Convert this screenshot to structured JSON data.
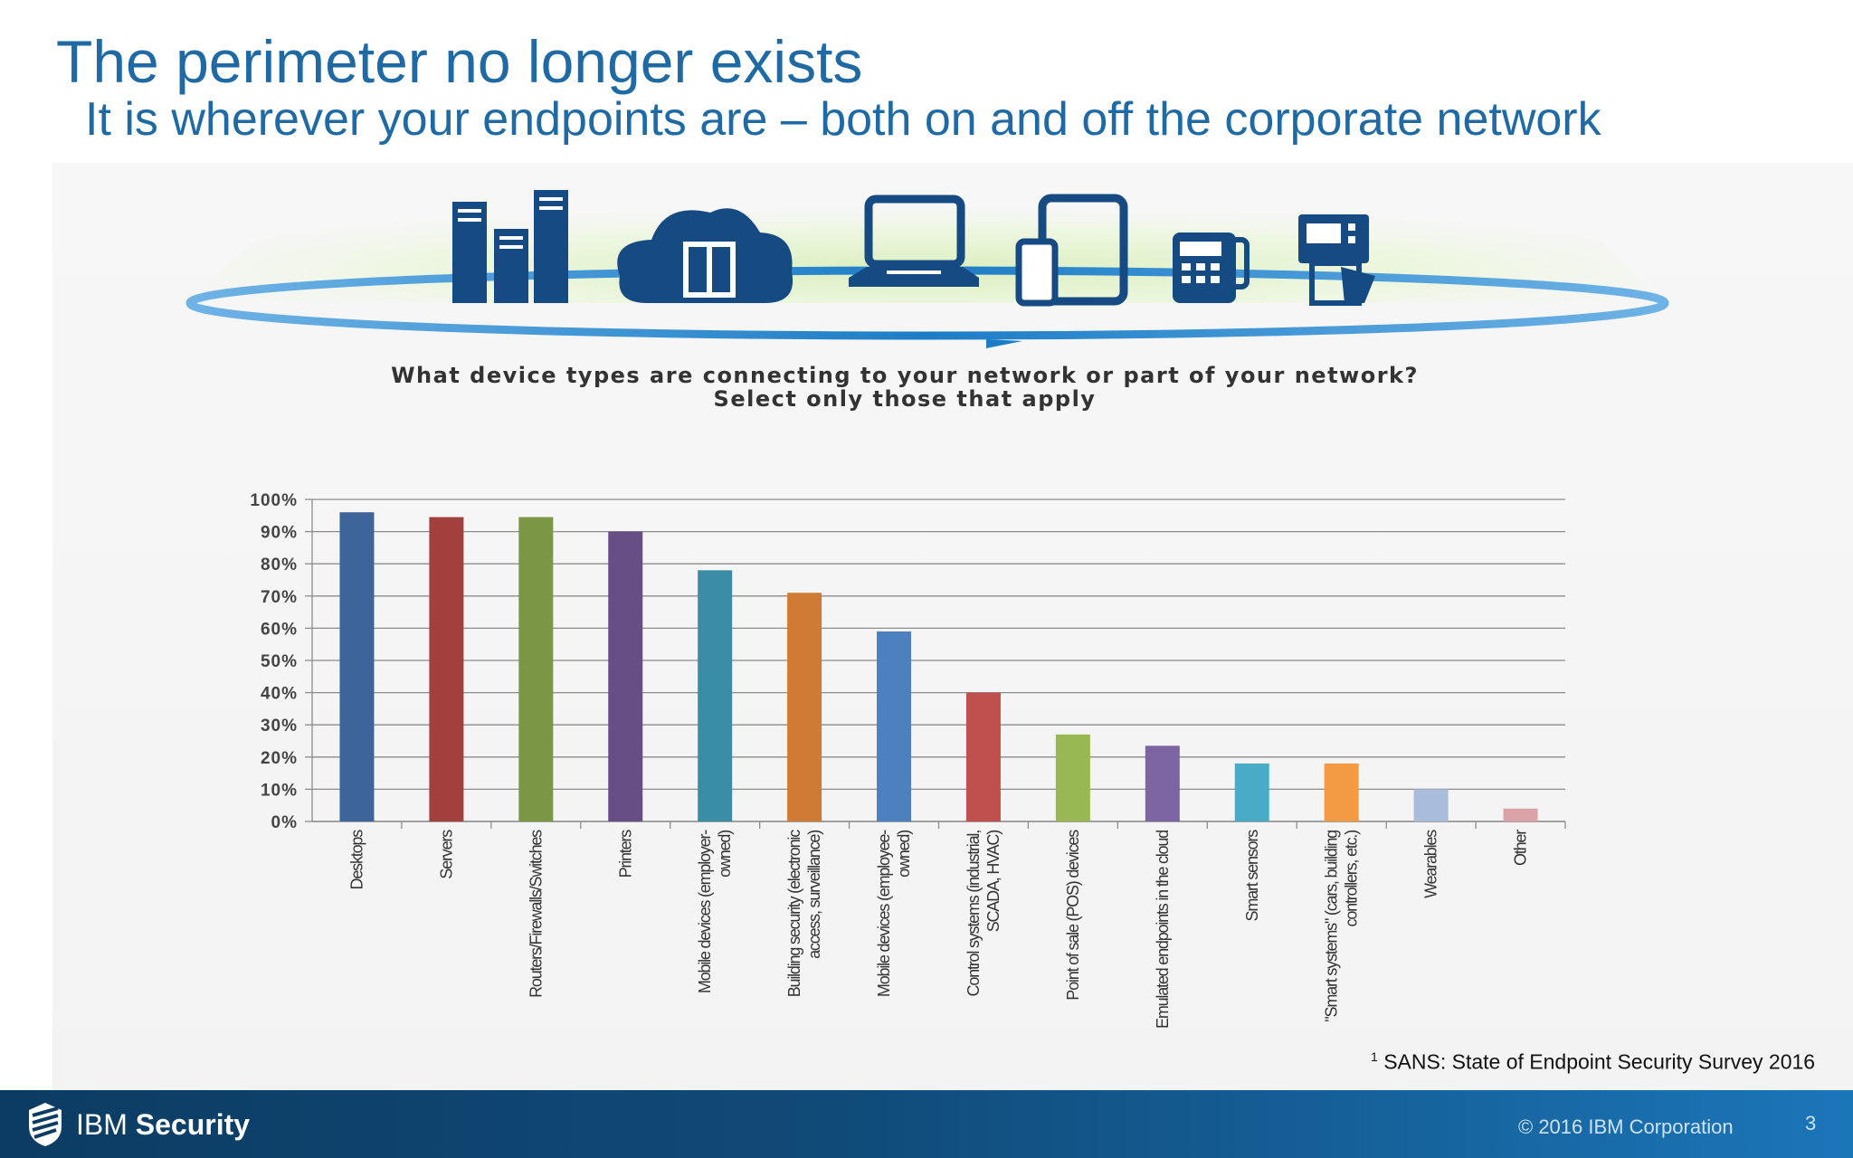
{
  "slide": {
    "title": "The perimeter no longer exists",
    "subtitle": "It is wherever your endpoints are – both on and off the corporate network",
    "question_line1": "What device types are connecting to your network or part of your network?",
    "question_line2": "Select only those that apply",
    "footnote_marker": "1",
    "footnote_text": "SANS: State of Endpoint Security Survey 2016"
  },
  "banner": {
    "icons": [
      "servers-icon",
      "cloud-datacenter-icon",
      "laptop-icon",
      "mobile-tablet-icon",
      "payment-terminal-icon",
      "atm-icon"
    ],
    "colors": {
      "icon": "#164a82",
      "ring": "#2a8ad0",
      "glow": "#dcefc0"
    }
  },
  "footer": {
    "brand_regular": "IBM ",
    "brand_bold": "Security",
    "copyright": "© 2016 IBM Corporation",
    "page": "3"
  },
  "chart_data": {
    "type": "bar",
    "categories": [
      [
        "Desktops"
      ],
      [
        "Servers"
      ],
      [
        "Routers/Firewalls/Switches"
      ],
      [
        "Printers"
      ],
      [
        "Mobile devices (employer-",
        "owned)"
      ],
      [
        "Building security (electronic",
        "access, surveillance)"
      ],
      [
        "Mobile devices (employee-",
        "owned)"
      ],
      [
        "Control systems (industrial,",
        "SCADA, HVAC)"
      ],
      [
        "Point of sale (POS) devices"
      ],
      [
        "Emulated endpoints in the cloud"
      ],
      [
        "Smart sensors"
      ],
      [
        "\"Smart systems\" (cars, building",
        "controllers, etc.)"
      ],
      [
        "Wearables"
      ],
      [
        "Other"
      ]
    ],
    "values": [
      96,
      94.5,
      94.5,
      90,
      78,
      71,
      59,
      40,
      27,
      23.5,
      18,
      18,
      10,
      4
    ],
    "colors": [
      "#3e659a",
      "#a2403e",
      "#7b9644",
      "#674f86",
      "#3b8da5",
      "#cf7b36",
      "#4d80bf",
      "#c0504d",
      "#97b852",
      "#7d64a3",
      "#4aabc6",
      "#f39a44",
      "#a9bcdb",
      "#dba3a7"
    ],
    "yticks": [
      "0%",
      "10%",
      "20%",
      "30%",
      "40%",
      "50%",
      "60%",
      "70%",
      "80%",
      "90%",
      "100%"
    ],
    "ylim": [
      0,
      100
    ],
    "grid": true
  }
}
